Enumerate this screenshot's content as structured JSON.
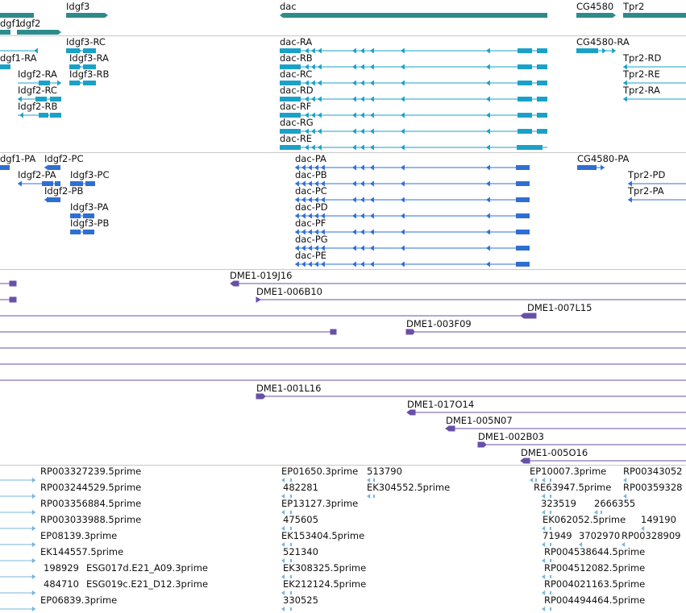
{
  "colors": {
    "gene": "#2e8b8b",
    "transcript": "#1aa1c8",
    "protein": "#2f6fd0",
    "clone": "#6a4fa8",
    "est": "#78b4dc",
    "separator": "#c8c8c8"
  },
  "tracks": {
    "genes": {
      "labels": [
        "dgf1",
        "Idgf2",
        "Idgf3",
        "dac",
        "CG4580",
        "Tpr2"
      ]
    },
    "transcripts": {
      "labels": [
        "Idgf3-RC",
        "Idgf3-RA",
        "Idgf3-RB",
        "dgf1-RA",
        "Idgf2-RA",
        "Idgf2-RC",
        "Idgf2-RB",
        "dac-RA",
        "dac-RB",
        "dac-RC",
        "dac-RD",
        "dac-RF",
        "dac-RG",
        "dac-RE",
        "CG4580-RA",
        "Tpr2-RD",
        "Tpr2-RE",
        "Tpr2-RA"
      ]
    },
    "proteins": {
      "labels": [
        "dgf1-PA",
        "Idgf2-PC",
        "Idgf2-PA",
        "Idgf3-PC",
        "Idgf2-PB",
        "Idgf3-PA",
        "Idgf3-PB",
        "dac-PA",
        "dac-PB",
        "dac-PC",
        "dac-PD",
        "dac-PF",
        "dac-PG",
        "dac-PE",
        "CG4580-PA",
        "Tpr2-PD",
        "Tpr2-PA"
      ]
    },
    "clones": {
      "labels": [
        "DME1-019J16",
        "DME1-006B10",
        "DME1-007L15",
        "DME1-003F09",
        "DME1-001L16",
        "DME1-017O14",
        "DME1-005N07",
        "DME1-002B03",
        "DME1-005O16"
      ]
    },
    "ests": {
      "labels": [
        "RP003327239.5prime",
        "RP003244529.5prime",
        "RP003356884.5prime",
        "RP003033988.5prime",
        "EP08139.3prime",
        "EK144557.5prime",
        "198929",
        "ESG017d.E21_A09.3prime",
        "484710",
        "ESG019c.E21_D12.3prime",
        "EP06839.3prime",
        "EP01650.3prime",
        "513790",
        "482281",
        "EK304552.5prime",
        "EP13127.3prime",
        "475605",
        "EK153404.5prime",
        "521340",
        "EK308325.5prime",
        "EK212124.5prime",
        "330525",
        "EP10007.3prime",
        "RP00343052",
        "RE63947.5prime",
        "RP00359328",
        "323519",
        "2666355",
        "EK062052.5prime",
        "149190",
        "71949",
        "3702970",
        "RP00328909",
        "RP004538644.5prime",
        "RP004512082.5prime",
        "RP004021163.5prime",
        "RP004494464.5prime"
      ]
    }
  }
}
